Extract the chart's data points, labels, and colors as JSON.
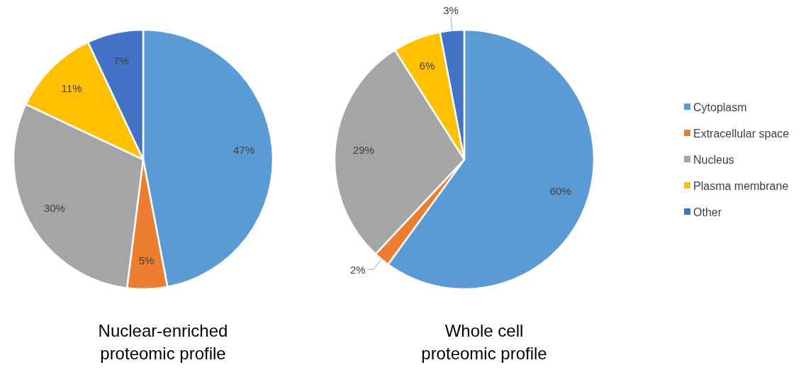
{
  "chart_data": [
    {
      "type": "pie",
      "title": "Nuclear-enriched proteomic profile",
      "categories": [
        null,
        null,
        null,
        null,
        null
      ],
      "values": [
        47,
        5,
        30,
        11,
        7
      ],
      "value_labels": [
        "47%",
        "5%",
        "30%",
        "11%",
        "7%"
      ],
      "colors": [
        "#5b9bd5",
        "#ed7d31",
        "#a5a5a5",
        "#ffc000",
        "#4472c4"
      ],
      "legend": false
    },
    {
      "type": "pie",
      "title": "Whole cell proteomic profile",
      "categories": [
        "Cytoplasm",
        "Extracellular space",
        "Nucleus",
        "Plasma membrane",
        "Other"
      ],
      "values": [
        60,
        2,
        29,
        6,
        3
      ],
      "value_labels": [
        "60%",
        "2%",
        "29%",
        "6%",
        "3%"
      ],
      "colors": [
        "#5b9bd5",
        "#ed7d31",
        "#a5a5a5",
        "#ffc000",
        "#4472c4"
      ],
      "legend": "right"
    }
  ]
}
